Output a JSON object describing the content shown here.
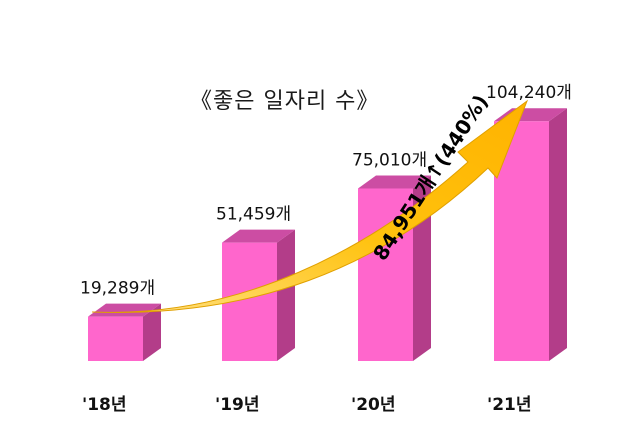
{
  "chart_data": {
    "type": "bar",
    "title": "《좋은 일자리 수》",
    "categories": [
      "'18년",
      "'19년",
      "'20년",
      "'21년"
    ],
    "values": [
      19289,
      51459,
      75010,
      104240
    ],
    "value_labels": [
      "19,289개",
      "51,459개",
      "75,010개",
      "104,240개"
    ],
    "annotation": "84,951개↑(440%)",
    "xlabel": "",
    "ylabel": "",
    "ylim": [
      0,
      110000
    ],
    "grid": false,
    "legend": "none",
    "colors": {
      "bar_front": "#ff66cc",
      "bar_side": "#b33d89",
      "bar_top": "#cc4da3",
      "arrow": "#ffc000"
    }
  }
}
